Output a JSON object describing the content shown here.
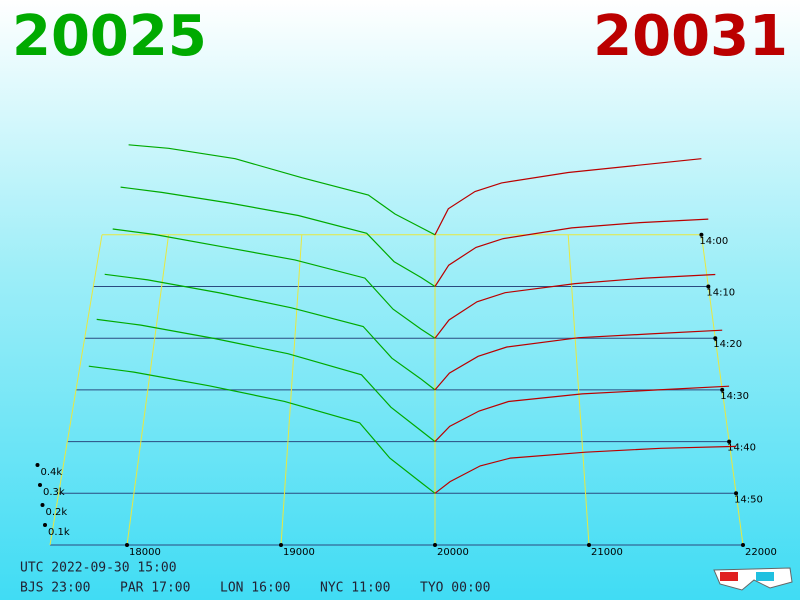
{
  "chart_data": {
    "type": "depth3d",
    "bid_price": 20025,
    "ask_price": 20031,
    "bid_color": "#00aa00",
    "ask_color": "#bb0000",
    "xlim": [
      17500,
      22000
    ],
    "xticks": [
      18000,
      19000,
      20000,
      21000,
      22000
    ],
    "ylim": [
      0,
      700
    ],
    "yticks": [
      {
        "value": 100,
        "label": "0.1k"
      },
      {
        "value": 200,
        "label": "0.2k"
      },
      {
        "value": 300,
        "label": "0.3k"
      },
      {
        "value": 400,
        "label": "0.4k"
      }
    ],
    "time_ticks": [
      "14:00",
      "14:10",
      "14:20",
      "14:30",
      "14:40",
      "14:50"
    ],
    "bid_prices": [
      17700,
      18000,
      18500,
      19000,
      19500,
      19700,
      19900,
      20000
    ],
    "ask_prices": [
      20000,
      20100,
      20300,
      20500,
      21000,
      21500,
      22000
    ],
    "slices": [
      {
        "bids": [
          520,
          500,
          440,
          330,
          230,
          120,
          40,
          0
        ],
        "asks": [
          0,
          150,
          250,
          300,
          360,
          400,
          440
        ]
      },
      {
        "bids": [
          560,
          530,
          470,
          400,
          300,
          140,
          50,
          0
        ],
        "asks": [
          0,
          120,
          220,
          270,
          330,
          360,
          380
        ]
      },
      {
        "bids": [
          600,
          570,
          500,
          430,
          330,
          160,
          50,
          0
        ],
        "asks": [
          0,
          100,
          200,
          250,
          300,
          330,
          350
        ]
      },
      {
        "bids": [
          620,
          590,
          520,
          440,
          340,
          170,
          60,
          0
        ],
        "asks": [
          0,
          90,
          180,
          230,
          280,
          300,
          320
        ]
      },
      {
        "bids": [
          640,
          610,
          540,
          460,
          350,
          180,
          60,
          0
        ],
        "asks": [
          0,
          80,
          160,
          210,
          250,
          270,
          290
        ]
      },
      {
        "bids": [
          650,
          620,
          550,
          470,
          360,
          180,
          60,
          0
        ],
        "asks": [
          0,
          60,
          140,
          180,
          210,
          230,
          240
        ]
      }
    ],
    "utc_time": "UTC 2022-09-30 15:00",
    "world_times": [
      "BJS 23:00",
      "PAR 17:00",
      "LON 16:00",
      "NYC 11:00",
      "TYO 00:00"
    ]
  }
}
